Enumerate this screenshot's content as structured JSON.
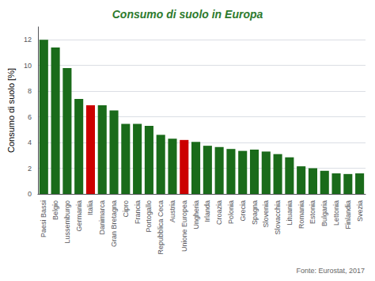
{
  "chart_data": {
    "type": "bar",
    "title": "Consumo di suolo in Europa",
    "ylabel": "Consumo di suolo [%]",
    "annotations": [
      "Fonte: Eurostat, 2017"
    ],
    "categories": [
      "Paesi Bassi",
      "Belgio",
      "Lussemburgo",
      "Germania",
      "Italia",
      "Danimarca",
      "Gran Bretagna",
      "Cipro",
      "Francia",
      "Portogallo",
      "Repubblica Ceca",
      "Austria",
      "Unione Europea",
      "Ungheria",
      "Irlanda",
      "Croazia",
      "Polonia",
      "Grecia",
      "Spagna",
      "Slovenia",
      "Slovacchia",
      "Lituania",
      "Romania",
      "Estonia",
      "Bulgaria",
      "Lettonia",
      "Finlandia",
      "Svezia"
    ],
    "values": [
      12.0,
      11.4,
      9.8,
      7.4,
      6.9,
      6.9,
      6.5,
      5.45,
      5.45,
      5.3,
      4.6,
      4.3,
      4.2,
      4.05,
      3.75,
      3.65,
      3.5,
      3.35,
      3.45,
      3.3,
      3.1,
      2.85,
      2.15,
      2.0,
      1.8,
      1.6,
      1.55,
      1.6
    ],
    "colors": [
      "#1a6b1a",
      "#1a6b1a",
      "#1a6b1a",
      "#1a6b1a",
      "#cc0000",
      "#1a6b1a",
      "#1a6b1a",
      "#1a6b1a",
      "#1a6b1a",
      "#1a6b1a",
      "#1a6b1a",
      "#1a6b1a",
      "#cc0000",
      "#1a6b1a",
      "#1a6b1a",
      "#1a6b1a",
      "#1a6b1a",
      "#1a6b1a",
      "#1a6b1a",
      "#1a6b1a",
      "#1a6b1a",
      "#1a6b1a",
      "#1a6b1a",
      "#1a6b1a",
      "#1a6b1a",
      "#1a6b1a",
      "#1a6b1a",
      "#1a6b1a"
    ],
    "ylim": [
      0,
      13
    ],
    "yticks": [
      0,
      2,
      4,
      6,
      8,
      10,
      12
    ],
    "grid": true
  }
}
